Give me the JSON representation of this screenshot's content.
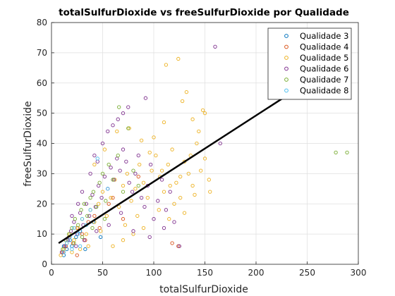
{
  "chart_data": {
    "type": "scatter",
    "title": "totalSulfurDioxide vs freeSulfurDioxide por Qualidade",
    "xlabel": "totalSulfurDioxide",
    "ylabel": "freeSulfurDioxide",
    "xlim": [
      0,
      300
    ],
    "ylim": [
      0,
      80
    ],
    "x_ticks": [
      "0",
      "50",
      "100",
      "150",
      "200",
      "250",
      "300"
    ],
    "y_ticks": [
      "0",
      "10",
      "20",
      "30",
      "40",
      "50",
      "60",
      "70",
      "80"
    ],
    "grid": true,
    "legend_position": "top-right",
    "marker": "open-circle",
    "series": [
      {
        "name": "Qualidade 3",
        "color": "#0072BD",
        "points": [
          [
            12,
            6
          ],
          [
            15,
            5
          ],
          [
            18,
            8
          ],
          [
            20,
            6
          ],
          [
            24,
            9
          ],
          [
            28,
            11
          ],
          [
            33,
            5
          ],
          [
            41,
            14
          ],
          [
            48,
            9
          ],
          [
            12,
            3
          ]
        ]
      },
      {
        "name": "Qualidade 4",
        "color": "#D95319",
        "points": [
          [
            11,
            4
          ],
          [
            14,
            6
          ],
          [
            17,
            9
          ],
          [
            21,
            7
          ],
          [
            25,
            12
          ],
          [
            30,
            10
          ],
          [
            36,
            14
          ],
          [
            42,
            16
          ],
          [
            56,
            20
          ],
          [
            70,
            15
          ],
          [
            118,
            7
          ],
          [
            124,
            6
          ],
          [
            25,
            3
          ],
          [
            33,
            8
          ],
          [
            47,
            12
          ],
          [
            60,
            22
          ],
          [
            85,
            29
          ]
        ]
      },
      {
        "name": "Qualidade 5",
        "color": "#EDB120",
        "points": [
          [
            9,
            3
          ],
          [
            12,
            5
          ],
          [
            15,
            7
          ],
          [
            18,
            10
          ],
          [
            22,
            8
          ],
          [
            26,
            12
          ],
          [
            30,
            15
          ],
          [
            34,
            10
          ],
          [
            38,
            18
          ],
          [
            42,
            14
          ],
          [
            46,
            20
          ],
          [
            50,
            24
          ],
          [
            54,
            16
          ],
          [
            58,
            22
          ],
          [
            62,
            28
          ],
          [
            66,
            19
          ],
          [
            70,
            26
          ],
          [
            74,
            30
          ],
          [
            78,
            21
          ],
          [
            82,
            25
          ],
          [
            86,
            33
          ],
          [
            90,
            27
          ],
          [
            94,
            22
          ],
          [
            98,
            31
          ],
          [
            102,
            36
          ],
          [
            106,
            29
          ],
          [
            110,
            24
          ],
          [
            114,
            33
          ],
          [
            118,
            38
          ],
          [
            122,
            27
          ],
          [
            126,
            22
          ],
          [
            130,
            34
          ],
          [
            134,
            30
          ],
          [
            138,
            26
          ],
          [
            142,
            40
          ],
          [
            146,
            31
          ],
          [
            150,
            35
          ],
          [
            154,
            28
          ],
          [
            100,
            42
          ],
          [
            110,
            47
          ],
          [
            128,
            54
          ],
          [
            132,
            57
          ],
          [
            138,
            48
          ],
          [
            148,
            51
          ],
          [
            150,
            50
          ],
          [
            112,
            66
          ],
          [
            124,
            68
          ],
          [
            105,
            18
          ],
          [
            115,
            15
          ],
          [
            90,
            12
          ],
          [
            80,
            10
          ],
          [
            70,
            8
          ],
          [
            60,
            6
          ],
          [
            120,
            20
          ],
          [
            130,
            17
          ],
          [
            140,
            23
          ],
          [
            155,
            24
          ],
          [
            42,
            33
          ],
          [
            52,
            38
          ],
          [
            64,
            44
          ],
          [
            76,
            45
          ],
          [
            88,
            41
          ],
          [
            96,
            37
          ],
          [
            108,
            31
          ],
          [
            84,
            16
          ],
          [
            72,
            13
          ],
          [
            48,
            11
          ],
          [
            36,
            6
          ],
          [
            28,
            5
          ],
          [
            20,
            4
          ],
          [
            116,
            26
          ],
          [
            126,
            29
          ],
          [
            136,
            36
          ],
          [
            144,
            44
          ]
        ]
      },
      {
        "name": "Qualidade 6",
        "color": "#7E2F8E",
        "points": [
          [
            10,
            4
          ],
          [
            13,
            6
          ],
          [
            16,
            8
          ],
          [
            19,
            11
          ],
          [
            22,
            14
          ],
          [
            25,
            10
          ],
          [
            28,
            17
          ],
          [
            31,
            13
          ],
          [
            34,
            20
          ],
          [
            37,
            16
          ],
          [
            40,
            23
          ],
          [
            43,
            19
          ],
          [
            46,
            26
          ],
          [
            49,
            22
          ],
          [
            52,
            29
          ],
          [
            55,
            25
          ],
          [
            58,
            32
          ],
          [
            61,
            28
          ],
          [
            64,
            35
          ],
          [
            67,
            31
          ],
          [
            70,
            38
          ],
          [
            73,
            34
          ],
          [
            76,
            27
          ],
          [
            79,
            24
          ],
          [
            82,
            30
          ],
          [
            85,
            36
          ],
          [
            88,
            22
          ],
          [
            91,
            19
          ],
          [
            94,
            26
          ],
          [
            97,
            33
          ],
          [
            100,
            15
          ],
          [
            104,
            21
          ],
          [
            108,
            28
          ],
          [
            112,
            18
          ],
          [
            116,
            24
          ],
          [
            120,
            14
          ],
          [
            45,
            34
          ],
          [
            50,
            40
          ],
          [
            55,
            44
          ],
          [
            60,
            46
          ],
          [
            65,
            48
          ],
          [
            70,
            50
          ],
          [
            75,
            52
          ],
          [
            92,
            55
          ],
          [
            160,
            72
          ],
          [
            165,
            40
          ],
          [
            125,
            6
          ],
          [
            38,
            30
          ],
          [
            42,
            36
          ],
          [
            30,
            24
          ],
          [
            26,
            20
          ],
          [
            20,
            16
          ],
          [
            24,
            6
          ],
          [
            32,
            8
          ],
          [
            44,
            11
          ],
          [
            56,
            13
          ],
          [
            68,
            17
          ],
          [
            80,
            11
          ],
          [
            96,
            9
          ],
          [
            110,
            12
          ]
        ]
      },
      {
        "name": "Qualidade 7",
        "color": "#77AC30",
        "points": [
          [
            11,
            5
          ],
          [
            14,
            8
          ],
          [
            17,
            10
          ],
          [
            20,
            12
          ],
          [
            23,
            15
          ],
          [
            26,
            13
          ],
          [
            29,
            18
          ],
          [
            32,
            20
          ],
          [
            35,
            16
          ],
          [
            38,
            22
          ],
          [
            41,
            24
          ],
          [
            44,
            19
          ],
          [
            47,
            27
          ],
          [
            50,
            30
          ],
          [
            53,
            21
          ],
          [
            56,
            33
          ],
          [
            60,
            28
          ],
          [
            65,
            36
          ],
          [
            70,
            24
          ],
          [
            75,
            45
          ],
          [
            80,
            31
          ],
          [
            85,
            26
          ],
          [
            278,
            37
          ],
          [
            289,
            37
          ],
          [
            66,
            52
          ],
          [
            22,
            7
          ],
          [
            30,
            9
          ],
          [
            40,
            12
          ],
          [
            52,
            15
          ]
        ]
      },
      {
        "name": "Qualidade 8",
        "color": "#4DBEEE",
        "points": [
          [
            12,
            4
          ],
          [
            15,
            7
          ],
          [
            18,
            9
          ],
          [
            22,
            12
          ],
          [
            26,
            10
          ],
          [
            30,
            15
          ],
          [
            34,
            13
          ],
          [
            38,
            18
          ],
          [
            45,
            35
          ],
          [
            55,
            25
          ],
          [
            20,
            5
          ],
          [
            28,
            6
          ]
        ]
      }
    ],
    "fit_line": {
      "x": [
        7,
        240
      ],
      "y": [
        7,
        58
      ],
      "color": "#000000"
    }
  }
}
